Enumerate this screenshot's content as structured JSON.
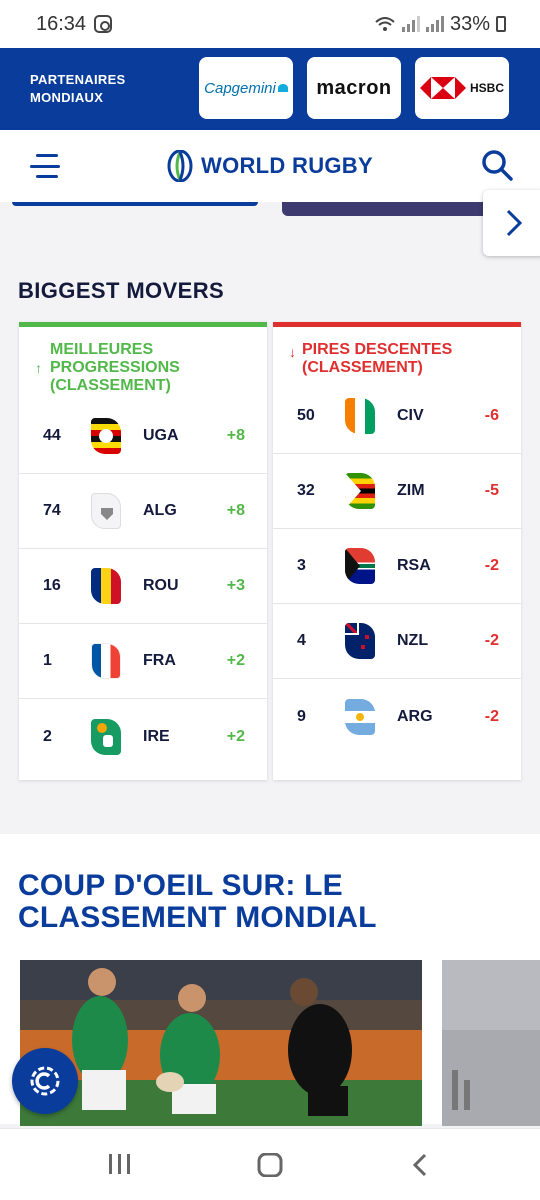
{
  "status": {
    "time": "16:34",
    "battery": "33%"
  },
  "partners": {
    "label_line1": "PARTENAIRES",
    "label_line2": "MONDIAUX",
    "logos": [
      "Capgemini",
      "macron",
      "HSBC"
    ]
  },
  "nav": {
    "brand": "WORLD RUGBY"
  },
  "movers": {
    "title": "BIGGEST MOVERS",
    "up": {
      "heading_line1": "MEILLEURES",
      "heading_line2": "PROGRESSIONS",
      "heading_line3": "(CLASSEMENT)",
      "rows": [
        {
          "rank": "44",
          "code": "UGA",
          "delta": "+8"
        },
        {
          "rank": "74",
          "code": "ALG",
          "delta": "+8"
        },
        {
          "rank": "16",
          "code": "ROU",
          "delta": "+3"
        },
        {
          "rank": "1",
          "code": "FRA",
          "delta": "+2"
        },
        {
          "rank": "2",
          "code": "IRE",
          "delta": "+2"
        }
      ]
    },
    "down": {
      "heading_line1": "PIRES DESCENTES",
      "heading_line2": "(CLASSEMENT)",
      "rows": [
        {
          "rank": "50",
          "code": "CIV",
          "delta": "-6"
        },
        {
          "rank": "32",
          "code": "ZIM",
          "delta": "-5"
        },
        {
          "rank": "3",
          "code": "RSA",
          "delta": "-2"
        },
        {
          "rank": "4",
          "code": "NZL",
          "delta": "-2"
        },
        {
          "rank": "9",
          "code": "ARG",
          "delta": "-2"
        }
      ]
    }
  },
  "feature": {
    "title": "COUP D'OEIL SUR: LE CLASSEMENT MONDIAL"
  },
  "colors": {
    "brand_blue": "#0a3c9c",
    "up_green": "#52b84a",
    "down_red": "#e02f2f",
    "dark_text": "#141a3c"
  }
}
